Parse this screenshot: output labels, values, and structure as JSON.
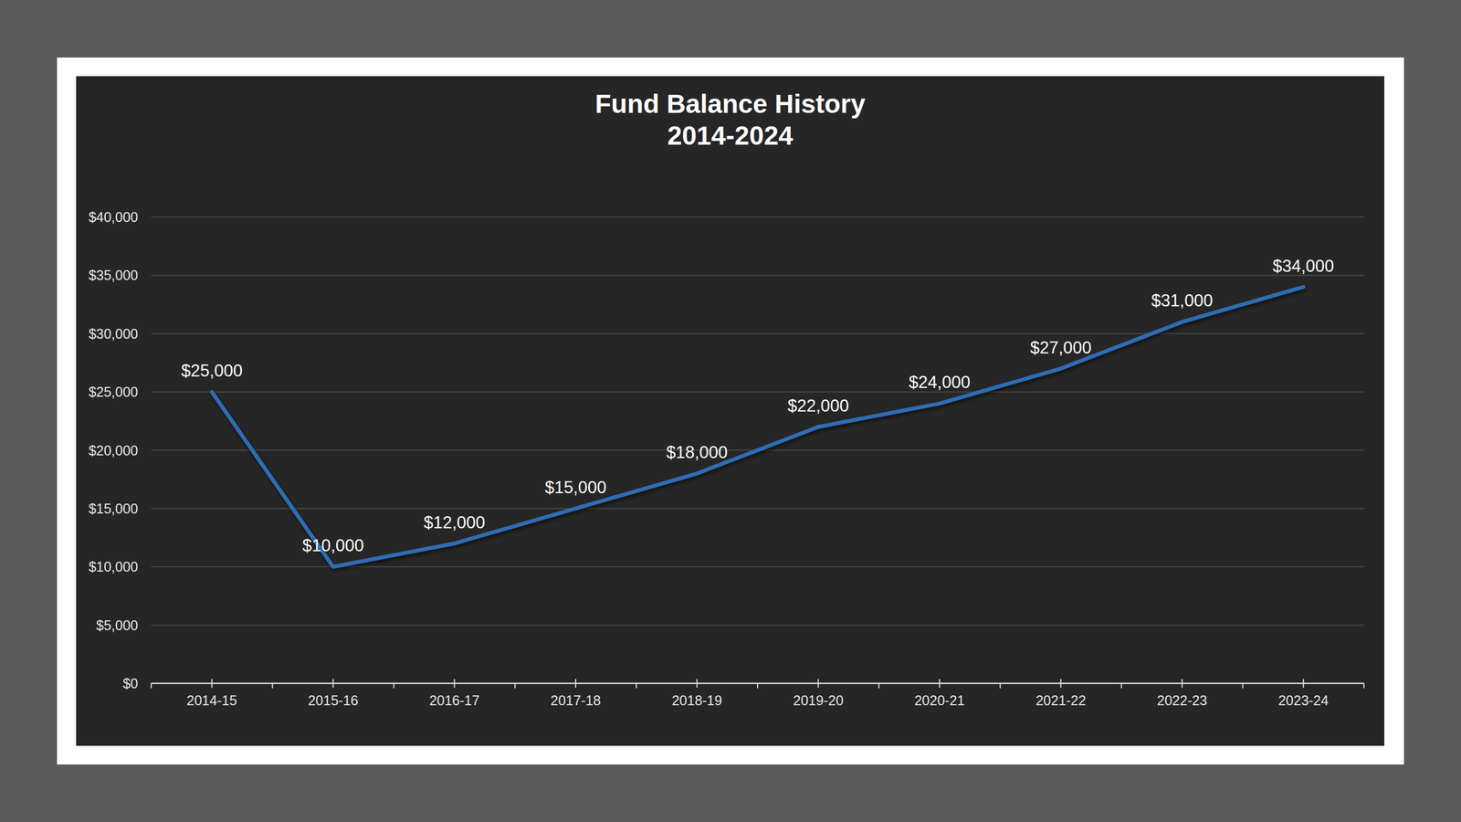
{
  "chart_data": {
    "type": "line",
    "title": "Fund Balance History",
    "subtitle": "2014-2024",
    "categories": [
      "2014-15",
      "2015-16",
      "2016-17",
      "2017-18",
      "2018-19",
      "2019-20",
      "2020-21",
      "2021-22",
      "2022-23",
      "2023-24"
    ],
    "values": [
      25000,
      10000,
      12000,
      15000,
      18000,
      22000,
      24000,
      27000,
      31000,
      34000
    ],
    "value_labels": [
      "$25,000",
      "$10,000",
      "$12,000",
      "$15,000",
      "$18,000",
      "$22,000",
      "$24,000",
      "$27,000",
      "$31,000",
      "$34,000"
    ],
    "color": "#2e6db4",
    "ylim": [
      0,
      40000
    ],
    "yticks": [
      {
        "value": 0,
        "label": "$0"
      },
      {
        "value": 5000,
        "label": "$5,000"
      },
      {
        "value": 10000,
        "label": "$10,000"
      },
      {
        "value": 15000,
        "label": "$15,000"
      },
      {
        "value": 20000,
        "label": "$20,000"
      },
      {
        "value": 25000,
        "label": "$25,000"
      },
      {
        "value": 30000,
        "label": "$30,000"
      },
      {
        "value": 35000,
        "label": "$35,000"
      },
      {
        "value": 40000,
        "label": "$40,000"
      }
    ],
    "grid": true,
    "data_labels": true
  }
}
